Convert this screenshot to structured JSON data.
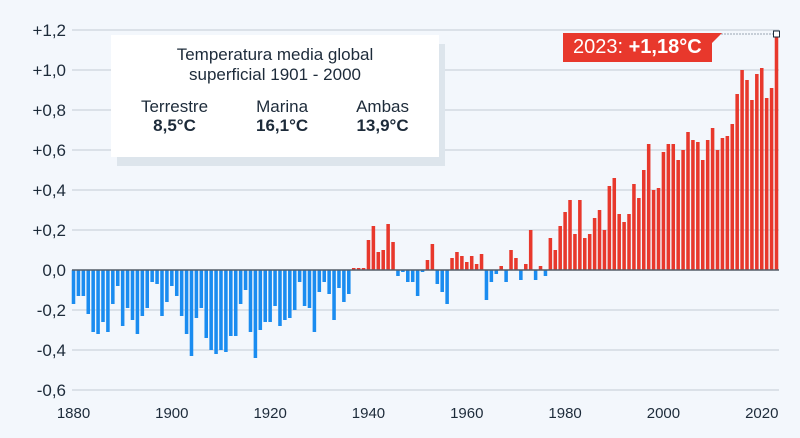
{
  "chart_data": {
    "type": "bar",
    "title": "",
    "xlabel": "",
    "ylabel": "",
    "ylim": [
      -0.6,
      1.2
    ],
    "yticks": [
      "+1,2",
      "+1,0",
      "+0,8",
      "+0,6",
      "+0,4",
      "+0,2",
      "0,0",
      "-0,2",
      "-0,4",
      "-0,6"
    ],
    "ytick_values": [
      1.2,
      1.0,
      0.8,
      0.6,
      0.4,
      0.2,
      0.0,
      -0.2,
      -0.4,
      -0.6
    ],
    "xticks": [
      "1880",
      "1900",
      "1920",
      "1940",
      "1960",
      "1980",
      "2000",
      "2020"
    ],
    "xtick_values": [
      1880,
      1900,
      1920,
      1940,
      1960,
      1980,
      2000,
      2020
    ],
    "grid": true,
    "x_start": 1880,
    "x_end": 2023,
    "colors": {
      "positive": "#e8382c",
      "negative": "#1a8cf0"
    },
    "values": [
      -0.17,
      -0.13,
      -0.13,
      -0.22,
      -0.31,
      -0.32,
      -0.26,
      -0.31,
      -0.17,
      -0.08,
      -0.28,
      -0.19,
      -0.25,
      -0.32,
      -0.23,
      -0.19,
      -0.06,
      -0.07,
      -0.23,
      -0.16,
      -0.08,
      -0.13,
      -0.23,
      -0.32,
      -0.43,
      -0.24,
      -0.19,
      -0.34,
      -0.4,
      -0.42,
      -0.4,
      -0.41,
      -0.33,
      -0.33,
      -0.17,
      -0.1,
      -0.31,
      -0.44,
      -0.3,
      -0.26,
      -0.26,
      -0.18,
      -0.28,
      -0.25,
      -0.24,
      -0.2,
      -0.06,
      -0.18,
      -0.19,
      -0.31,
      -0.11,
      -0.06,
      -0.12,
      -0.25,
      -0.09,
      -0.16,
      -0.12,
      0.01,
      0.01,
      0.01,
      0.15,
      0.22,
      0.09,
      0.1,
      0.23,
      0.14,
      -0.03,
      -0.01,
      -0.06,
      -0.06,
      -0.13,
      -0.01,
      0.05,
      0.13,
      -0.07,
      -0.11,
      -0.17,
      0.06,
      0.09,
      0.07,
      0.04,
      0.07,
      0.03,
      0.08,
      -0.15,
      -0.06,
      -0.02,
      0.02,
      -0.06,
      0.1,
      0.06,
      -0.05,
      0.03,
      0.2,
      -0.05,
      0.02,
      -0.03,
      0.16,
      0.1,
      0.22,
      0.29,
      0.35,
      0.18,
      0.35,
      0.16,
      0.18,
      0.26,
      0.3,
      0.2,
      0.42,
      0.46,
      0.28,
      0.24,
      0.28,
      0.43,
      0.36,
      0.5,
      0.63,
      0.4,
      0.41,
      0.59,
      0.63,
      0.63,
      0.55,
      0.6,
      0.69,
      0.65,
      0.64,
      0.55,
      0.65,
      0.71,
      0.6,
      0.66,
      0.67,
      0.73,
      0.88,
      1.0,
      0.95,
      0.85,
      0.98,
      1.01,
      0.86,
      0.91,
      1.18
    ],
    "annotation": {
      "year": 2023,
      "text_year": "2023: ",
      "text_value": "+1,18°C"
    }
  },
  "infobox": {
    "title_line1": "Temperatura media global",
    "title_line2": "superficial 1901 - 2000",
    "columns": [
      {
        "label": "Terrestre",
        "value": "8,5°C"
      },
      {
        "label": "Marina",
        "value": "16,1°C"
      },
      {
        "label": "Ambas",
        "value": "13,9°C"
      }
    ]
  }
}
